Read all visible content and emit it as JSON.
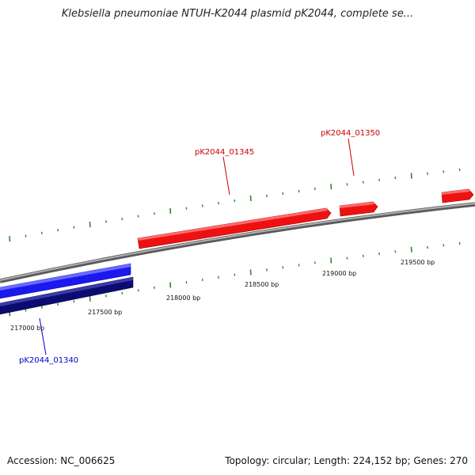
{
  "title": "Klebsiella pneumoniae NTUH-K2044 plasmid pK2044, complete se...",
  "footer": {
    "accession": "Accession: NC_006625",
    "info": "Topology: circular; Length: 224,152 bp; Genes: 270"
  },
  "colors": {
    "backbone": "#8c8c8c",
    "tick": "#2a8a2a",
    "forward_gene": "#ee1111",
    "forward_label": "#cc0000",
    "reverse_gene_outer": "#1a1aee",
    "reverse_gene_inner": "#0b0b70",
    "reverse_label": "#0000cc"
  },
  "scale_labels": [
    "217000 bp",
    "217500 bp",
    "218000 bp",
    "218500 bp",
    "219000 bp",
    "219500 bp"
  ],
  "genes": [
    {
      "id": "pK2044_01340",
      "label": "pK2044_01340",
      "strand": "reverse"
    },
    {
      "id": "pK2044_01345",
      "label": "pK2044_01345",
      "strand": "forward"
    },
    {
      "id": "pK2044_01350",
      "label": "pK2044_01350",
      "strand": "forward"
    }
  ]
}
